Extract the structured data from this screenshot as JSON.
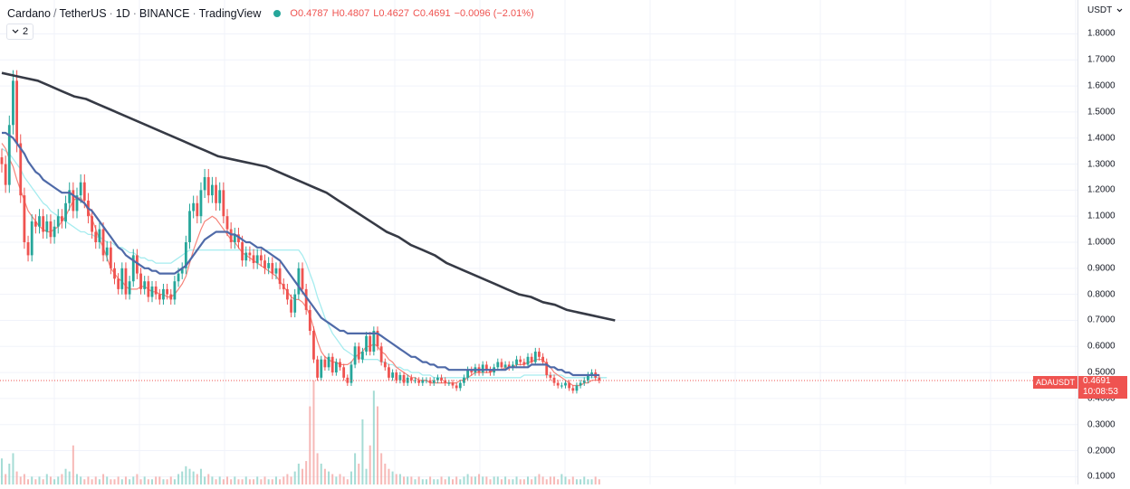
{
  "header": {
    "symbol": "Cardano",
    "quote": "TetherUS",
    "interval": "1D",
    "exchange": "BINANCE",
    "source": "TradingView",
    "open": "O0.4787",
    "high": "H0.4807",
    "low": "L0.4627",
    "close": "C0.4691",
    "change": "−0.0096 (−2.01%)",
    "indicator_count": "2",
    "status_color": "#26a69a"
  },
  "price_axis": {
    "currency": "USDT",
    "ticks": [
      "1.8000",
      "1.7000",
      "1.6000",
      "1.5000",
      "1.4000",
      "1.3000",
      "1.2000",
      "1.1000",
      "1.0000",
      "0.9000",
      "0.8000",
      "0.7000",
      "0.6000",
      "0.5000",
      "0.4000",
      "0.3000",
      "0.2000",
      "0.1000"
    ]
  },
  "last_price": {
    "symbol_tag": "ADAUSDT",
    "price": "0.4691",
    "countdown": "10:08:53",
    "color": "#ef5350"
  },
  "chart_data": {
    "type": "candlestick",
    "y_scale": "linear",
    "ylim": [
      0.07,
      1.93
    ],
    "up_color": "#26a69a",
    "down_color": "#ef5350",
    "close_series": [
      1.3,
      1.22,
      1.45,
      1.62,
      1.38,
      1.18,
      1.0,
      0.95,
      1.08,
      1.06,
      1.1,
      1.04,
      1.08,
      1.02,
      1.06,
      1.1,
      1.08,
      1.15,
      1.2,
      1.12,
      1.18,
      1.23,
      1.16,
      1.1,
      1.04,
      1.0,
      1.05,
      0.95,
      0.98,
      0.9,
      0.86,
      0.82,
      0.9,
      0.8,
      0.85,
      0.95,
      0.88,
      0.82,
      0.85,
      0.79,
      0.83,
      0.8,
      0.78,
      0.82,
      0.8,
      0.78,
      0.85,
      0.88,
      0.9,
      1.0,
      1.12,
      1.15,
      1.1,
      1.2,
      1.25,
      1.18,
      1.22,
      1.15,
      1.2,
      1.1,
      1.05,
      1.0,
      1.03,
      1.0,
      0.93,
      0.96,
      0.95,
      0.92,
      0.95,
      0.93,
      0.9,
      0.92,
      0.88,
      0.9,
      0.84,
      0.82,
      0.78,
      0.73,
      0.8,
      0.9,
      0.82,
      0.74,
      0.66,
      0.55,
      0.48,
      0.55,
      0.52,
      0.56,
      0.5,
      0.54,
      0.52,
      0.48,
      0.46,
      0.53,
      0.6,
      0.55,
      0.58,
      0.64,
      0.58,
      0.66,
      0.6,
      0.54,
      0.52,
      0.48,
      0.5,
      0.47,
      0.49,
      0.46,
      0.48,
      0.47,
      0.47,
      0.46,
      0.47,
      0.47,
      0.46,
      0.47,
      0.48,
      0.47,
      0.46,
      0.46,
      0.45,
      0.44,
      0.46,
      0.48,
      0.51,
      0.5,
      0.52,
      0.5,
      0.53,
      0.51,
      0.5,
      0.52,
      0.54,
      0.52,
      0.53,
      0.52,
      0.53,
      0.55,
      0.54,
      0.53,
      0.56,
      0.54,
      0.58,
      0.56,
      0.54,
      0.49,
      0.48,
      0.46,
      0.45,
      0.45,
      0.46,
      0.44,
      0.43,
      0.45,
      0.46,
      0.47,
      0.49,
      0.5,
      0.48,
      0.47
    ],
    "ma_series": [
      {
        "color": "#f5847a",
        "values": [
          1.38,
          1.36,
          1.32,
          1.29,
          1.24,
          1.2,
          1.16,
          1.12,
          1.1,
          1.08,
          1.06,
          1.05,
          1.04,
          1.04,
          1.05,
          1.06,
          1.08,
          1.1,
          1.13,
          1.16,
          1.17,
          1.17,
          1.15,
          1.12,
          1.09,
          1.05,
          1.01,
          0.98,
          0.94,
          0.9,
          0.88,
          0.86,
          0.85,
          0.83,
          0.82,
          0.82,
          0.82,
          0.83,
          0.83,
          0.82,
          0.81,
          0.81,
          0.8,
          0.8,
          0.79,
          0.79,
          0.8,
          0.82,
          0.84,
          0.87,
          0.92,
          0.97,
          1.01,
          1.05,
          1.08,
          1.09,
          1.1,
          1.09,
          1.07,
          1.05,
          1.03,
          1.01,
          1.0,
          0.98,
          0.96,
          0.95,
          0.94,
          0.93,
          0.92,
          0.91,
          0.9,
          0.89,
          0.88,
          0.87,
          0.85,
          0.83,
          0.81,
          0.79,
          0.78,
          0.78,
          0.77,
          0.75,
          0.72,
          0.67,
          0.62,
          0.58,
          0.56,
          0.55,
          0.54,
          0.54,
          0.53,
          0.53,
          0.53,
          0.54,
          0.56,
          0.57,
          0.58,
          0.6,
          0.6,
          0.61,
          0.6,
          0.58,
          0.57,
          0.55,
          0.54,
          0.52,
          0.51,
          0.5,
          0.49,
          0.48,
          0.48,
          0.47,
          0.47,
          0.47,
          0.46,
          0.46,
          0.46,
          0.46,
          0.46,
          0.46,
          0.46,
          0.46,
          0.47,
          0.47,
          0.48,
          0.49,
          0.5,
          0.5,
          0.5,
          0.5,
          0.5,
          0.51,
          0.51,
          0.51,
          0.52,
          0.52,
          0.52,
          0.53,
          0.53,
          0.53,
          0.54,
          0.54,
          0.55,
          0.55,
          0.55,
          0.53,
          0.52,
          0.5,
          0.49,
          0.48,
          0.47,
          0.46,
          0.45,
          0.45,
          0.45,
          0.46,
          0.46,
          0.47,
          0.47,
          0.47
        ]
      },
      {
        "color": "#4f6aa8",
        "values": [
          1.42,
          1.42,
          1.41,
          1.4,
          1.38,
          1.36,
          1.34,
          1.31,
          1.29,
          1.27,
          1.26,
          1.24,
          1.23,
          1.22,
          1.21,
          1.2,
          1.19,
          1.19,
          1.19,
          1.18,
          1.17,
          1.16,
          1.15,
          1.13,
          1.12,
          1.1,
          1.08,
          1.06,
          1.04,
          1.02,
          1.0,
          0.98,
          0.97,
          0.95,
          0.94,
          0.93,
          0.92,
          0.91,
          0.9,
          0.9,
          0.89,
          0.89,
          0.88,
          0.88,
          0.88,
          0.88,
          0.88,
          0.89,
          0.9,
          0.91,
          0.93,
          0.95,
          0.97,
          0.99,
          1.01,
          1.02,
          1.03,
          1.04,
          1.04,
          1.04,
          1.04,
          1.03,
          1.03,
          1.02,
          1.01,
          1.0,
          1.0,
          0.99,
          0.98,
          0.98,
          0.97,
          0.96,
          0.95,
          0.94,
          0.93,
          0.91,
          0.89,
          0.87,
          0.85,
          0.83,
          0.81,
          0.79,
          0.77,
          0.75,
          0.73,
          0.71,
          0.7,
          0.69,
          0.68,
          0.67,
          0.66,
          0.66,
          0.65,
          0.65,
          0.65,
          0.65,
          0.65,
          0.65,
          0.65,
          0.65,
          0.65,
          0.64,
          0.63,
          0.62,
          0.61,
          0.6,
          0.59,
          0.58,
          0.57,
          0.56,
          0.56,
          0.55,
          0.54,
          0.54,
          0.53,
          0.53,
          0.52,
          0.52,
          0.52,
          0.51,
          0.51,
          0.51,
          0.51,
          0.51,
          0.51,
          0.51,
          0.51,
          0.51,
          0.51,
          0.51,
          0.51,
          0.51,
          0.51,
          0.51,
          0.51,
          0.52,
          0.52,
          0.52,
          0.52,
          0.52,
          0.52,
          0.53,
          0.53,
          0.53,
          0.53,
          0.53,
          0.52,
          0.52,
          0.51,
          0.51,
          0.5,
          0.5,
          0.49,
          0.49,
          0.49,
          0.49,
          0.49,
          0.49,
          0.49,
          0.49
        ]
      },
      {
        "color": "#a6ecef",
        "values": [
          1.36,
          1.35,
          1.34,
          1.32,
          1.3,
          1.28,
          1.25,
          1.23,
          1.21,
          1.19,
          1.17,
          1.15,
          1.14,
          1.12,
          1.11,
          1.1,
          1.09,
          1.08,
          1.07,
          1.06,
          1.05,
          1.04,
          1.04,
          1.03,
          1.03,
          1.02,
          1.02,
          1.01,
          1.0,
          1.0,
          0.99,
          0.98,
          0.98,
          0.97,
          0.96,
          0.96,
          0.95,
          0.94,
          0.94,
          0.93,
          0.93,
          0.92,
          0.92,
          0.92,
          0.92,
          0.92,
          0.93,
          0.94,
          0.95,
          0.96,
          0.97,
          0.97,
          0.97,
          0.97,
          0.97,
          0.97,
          0.97,
          0.97,
          0.97,
          0.97,
          0.97,
          0.97,
          0.97,
          0.97,
          0.97,
          0.97,
          0.97,
          0.97,
          0.97,
          0.97,
          0.97,
          0.97,
          0.97,
          0.97,
          0.97,
          0.97,
          0.97,
          0.97,
          0.97,
          0.97,
          0.95,
          0.92,
          0.88,
          0.84,
          0.79,
          0.75,
          0.71,
          0.68,
          0.65,
          0.63,
          0.61,
          0.59,
          0.58,
          0.57,
          0.56,
          0.56,
          0.55,
          0.55,
          0.55,
          0.55,
          0.55,
          0.54,
          0.54,
          0.53,
          0.53,
          0.52,
          0.52,
          0.51,
          0.51,
          0.5,
          0.5,
          0.5,
          0.49,
          0.49,
          0.49,
          0.48,
          0.48,
          0.48,
          0.48,
          0.48,
          0.48,
          0.48,
          0.48,
          0.48,
          0.48,
          0.48,
          0.48,
          0.48,
          0.48,
          0.48,
          0.48,
          0.48,
          0.48,
          0.48,
          0.48,
          0.48,
          0.48,
          0.48,
          0.48,
          0.49,
          0.49,
          0.49,
          0.49,
          0.49,
          0.49,
          0.49,
          0.49,
          0.49,
          0.49,
          0.49,
          0.48,
          0.48,
          0.48,
          0.48,
          0.48,
          0.48,
          0.48,
          0.48,
          0.48,
          0.48,
          0.48,
          0.48
        ]
      },
      {
        "color": "#363a45",
        "values": [
          1.65,
          1.64,
          1.63,
          1.62,
          1.6,
          1.58,
          1.56,
          1.55,
          1.53,
          1.51,
          1.49,
          1.47,
          1.45,
          1.43,
          1.41,
          1.39,
          1.37,
          1.35,
          1.33,
          1.32,
          1.31,
          1.3,
          1.29,
          1.27,
          1.25,
          1.23,
          1.21,
          1.19,
          1.16,
          1.13,
          1.1,
          1.07,
          1.04,
          1.02,
          0.99,
          0.97,
          0.95,
          0.92,
          0.9,
          0.88,
          0.86,
          0.84,
          0.82,
          0.8,
          0.79,
          0.77,
          0.76,
          0.74,
          0.73,
          0.72,
          0.71,
          0.7
        ]
      }
    ],
    "volume_series": [
      0.1,
      0.04,
      0.08,
      0.12,
      0.05,
      0.03,
      0.04,
      0.02,
      0.03,
      0.02,
      0.03,
      0.02,
      0.04,
      0.03,
      0.02,
      0.03,
      0.04,
      0.06,
      0.05,
      0.15,
      0.04,
      0.03,
      0.02,
      0.03,
      0.02,
      0.03,
      0.02,
      0.04,
      0.03,
      0.02,
      0.02,
      0.03,
      0.02,
      0.03,
      0.02,
      0.03,
      0.04,
      0.02,
      0.03,
      0.02,
      0.02,
      0.03,
      0.03,
      0.02,
      0.02,
      0.03,
      0.02,
      0.04,
      0.05,
      0.07,
      0.06,
      0.05,
      0.04,
      0.06,
      0.03,
      0.04,
      0.03,
      0.02,
      0.03,
      0.02,
      0.03,
      0.02,
      0.03,
      0.02,
      0.02,
      0.03,
      0.02,
      0.02,
      0.03,
      0.02,
      0.03,
      0.02,
      0.02,
      0.03,
      0.02,
      0.03,
      0.04,
      0.03,
      0.05,
      0.08,
      0.06,
      0.09,
      0.3,
      0.4,
      0.12,
      0.08,
      0.06,
      0.05,
      0.04,
      0.03,
      0.04,
      0.03,
      0.02,
      0.05,
      0.12,
      0.08,
      0.25,
      0.06,
      0.15,
      0.36,
      0.3,
      0.12,
      0.08,
      0.06,
      0.05,
      0.04,
      0.04,
      0.03,
      0.03,
      0.03,
      0.02,
      0.03,
      0.02,
      0.02,
      0.03,
      0.02,
      0.02,
      0.03,
      0.02,
      0.03,
      0.02,
      0.03,
      0.02,
      0.03,
      0.04,
      0.03,
      0.03,
      0.04,
      0.03,
      0.03,
      0.02,
      0.03,
      0.03,
      0.02,
      0.03,
      0.02,
      0.02,
      0.03,
      0.02,
      0.02,
      0.03,
      0.02,
      0.03,
      0.04,
      0.03,
      0.02,
      0.03,
      0.03,
      0.02,
      0.04,
      0.03,
      0.02,
      0.03,
      0.02,
      0.02,
      0.03,
      0.02,
      0.02,
      0.03,
      0.02
    ],
    "grid": true
  }
}
